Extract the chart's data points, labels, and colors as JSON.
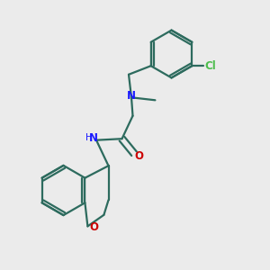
{
  "background_color": "#ebebeb",
  "bond_color": "#2d6b5e",
  "N_color": "#1a1aff",
  "O_color": "#cc0000",
  "Cl_color": "#4dbd4d",
  "line_width": 1.6,
  "figsize": [
    3.0,
    3.0
  ],
  "dpi": 100,
  "xlim": [
    0,
    1
  ],
  "ylim": [
    0,
    1
  ]
}
